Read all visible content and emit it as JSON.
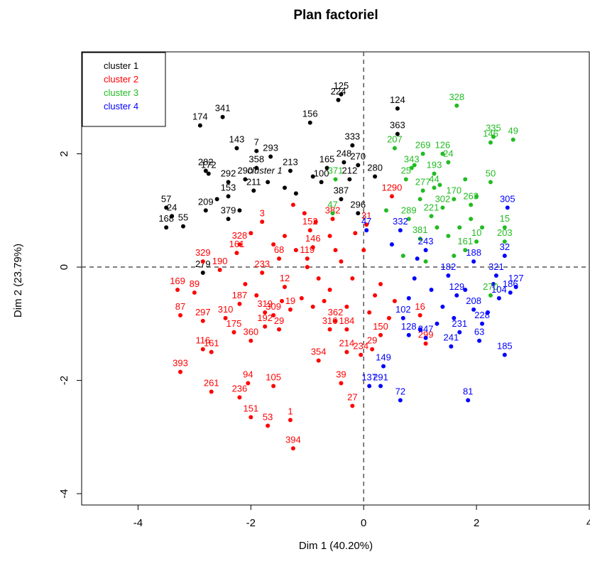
{
  "chart_data": {
    "type": "scatter",
    "title": "Plan factoriel",
    "xlabel": "Dim 1 (40.20%)",
    "ylabel": "Dim 2 (23.79%)",
    "xlim": [
      -5,
      4
    ],
    "ylim": [
      -4.2,
      3.8
    ],
    "xticks": [
      -4,
      -2,
      0,
      2,
      4
    ],
    "yticks": [
      -4,
      -2,
      0,
      2
    ],
    "reference_lines": {
      "x": 0,
      "y": 0,
      "style": "dashed"
    },
    "legend": {
      "position": "top-left",
      "entries": [
        {
          "label": "cluster 1",
          "color": "#000000"
        },
        {
          "label": "cluster 2",
          "color": "#ff0000"
        },
        {
          "label": "cluster 3",
          "color": "#22bb22"
        },
        {
          "label": "cluster 4",
          "color": "#0000ff"
        }
      ]
    },
    "series": [
      {
        "name": "cluster 1",
        "color": "#000000",
        "points": [
          {
            "label": "125",
            "x": -0.4,
            "y": 3.05
          },
          {
            "label": "224",
            "x": -0.45,
            "y": 2.95
          },
          {
            "label": "341",
            "x": -2.5,
            "y": 2.65
          },
          {
            "label": "174",
            "x": -2.9,
            "y": 2.5
          },
          {
            "label": "156",
            "x": -0.95,
            "y": 2.55
          },
          {
            "label": "124",
            "x": 0.6,
            "y": 2.8
          },
          {
            "label": "363",
            "x": 0.6,
            "y": 2.35
          },
          {
            "label": "143",
            "x": -2.25,
            "y": 2.1
          },
          {
            "label": "7",
            "x": -1.9,
            "y": 2.05
          },
          {
            "label": "293",
            "x": -1.65,
            "y": 1.95
          },
          {
            "label": "282",
            "x": -2.8,
            "y": 1.7
          },
          {
            "label": "172",
            "x": -2.75,
            "y": 1.65
          },
          {
            "label": "358",
            "x": -1.9,
            "y": 1.75
          },
          {
            "label": "213",
            "x": -1.3,
            "y": 1.7
          },
          {
            "label": "333",
            "x": -0.2,
            "y": 2.15
          },
          {
            "label": "248",
            "x": -0.35,
            "y": 1.85
          },
          {
            "label": "270",
            "x": -0.1,
            "y": 1.8
          },
          {
            "label": "165",
            "x": -0.65,
            "y": 1.75
          },
          {
            "label": "100",
            "x": -0.75,
            "y": 1.5
          },
          {
            "label": "212",
            "x": -0.25,
            "y": 1.55
          },
          {
            "label": "280",
            "x": 0.2,
            "y": 1.6
          },
          {
            "label": "292",
            "x": -2.4,
            "y": 1.5
          },
          {
            "label": "290",
            "x": -2.1,
            "y": 1.55
          },
          {
            "label": "211",
            "x": -1.95,
            "y": 1.35
          },
          {
            "label": "153",
            "x": -2.4,
            "y": 1.25
          },
          {
            "label": "209",
            "x": -2.8,
            "y": 1.0
          },
          {
            "label": "57",
            "x": -3.5,
            "y": 1.05
          },
          {
            "label": "24",
            "x": -3.4,
            "y": 0.9
          },
          {
            "label": "168",
            "x": -3.5,
            "y": 0.7
          },
          {
            "label": "55",
            "x": -3.2,
            "y": 0.72
          },
          {
            "label": "379",
            "x": -2.4,
            "y": 0.85
          },
          {
            "label": "296",
            "x": -0.1,
            "y": 0.95
          },
          {
            "label": "387",
            "x": -0.4,
            "y": 1.2
          },
          {
            "label": "279",
            "x": -2.85,
            "y": -0.1
          }
        ]
      },
      {
        "name": "cluster 2",
        "color": "#ff0000",
        "points": [
          {
            "label": "329",
            "x": -2.85,
            "y": 0.1
          },
          {
            "label": "190",
            "x": -2.55,
            "y": -0.05
          },
          {
            "label": "169",
            "x": -3.3,
            "y": -0.4
          },
          {
            "label": "89",
            "x": -3.0,
            "y": -0.45
          },
          {
            "label": "87",
            "x": -3.25,
            "y": -0.85
          },
          {
            "label": "297",
            "x": -2.85,
            "y": -0.95
          },
          {
            "label": "310",
            "x": -2.45,
            "y": -0.9
          },
          {
            "label": "187",
            "x": -2.2,
            "y": -0.65
          },
          {
            "label": "319",
            "x": -1.75,
            "y": -0.8
          },
          {
            "label": "175",
            "x": -2.3,
            "y": -1.15
          },
          {
            "label": "360",
            "x": -2.0,
            "y": -1.3
          },
          {
            "label": "116",
            "x": -2.85,
            "y": -1.45
          },
          {
            "label": "161",
            "x": -2.7,
            "y": -1.5
          },
          {
            "label": "393",
            "x": -3.25,
            "y": -1.85
          },
          {
            "label": "261",
            "x": -2.7,
            "y": -2.2
          },
          {
            "label": "236",
            "x": -2.2,
            "y": -2.3
          },
          {
            "label": "94",
            "x": -2.05,
            "y": -2.05
          },
          {
            "label": "105",
            "x": -1.6,
            "y": -2.1
          },
          {
            "label": "151",
            "x": -2.0,
            "y": -2.65
          },
          {
            "label": "53",
            "x": -1.7,
            "y": -2.8
          },
          {
            "label": "1",
            "x": -1.3,
            "y": -2.7
          },
          {
            "label": "394",
            "x": -1.25,
            "y": -3.2
          },
          {
            "label": "354",
            "x": -0.8,
            "y": -1.65
          },
          {
            "label": "214",
            "x": -0.3,
            "y": -1.5
          },
          {
            "label": "234",
            "x": -0.05,
            "y": -1.55
          },
          {
            "label": "39",
            "x": -0.4,
            "y": -2.05
          },
          {
            "label": "27",
            "x": -0.2,
            "y": -2.45
          },
          {
            "label": "29",
            "x": 0.15,
            "y": -1.45
          },
          {
            "label": "16",
            "x": 1.0,
            "y": -0.85
          },
          {
            "label": "299",
            "x": 1.1,
            "y": -1.35
          },
          {
            "label": "309",
            "x": -1.6,
            "y": -0.85
          },
          {
            "label": "29",
            "x": -1.5,
            "y": -1.1
          },
          {
            "label": "192",
            "x": -1.75,
            "y": -1.05
          },
          {
            "label": "316",
            "x": -0.6,
            "y": -1.1
          },
          {
            "label": "184",
            "x": -0.3,
            "y": -1.1
          },
          {
            "label": "146",
            "x": -0.9,
            "y": 0.35
          },
          {
            "label": "152",
            "x": -0.95,
            "y": 0.65
          },
          {
            "label": "328",
            "x": -2.2,
            "y": 0.4
          },
          {
            "label": "161",
            "x": -2.25,
            "y": 0.25
          },
          {
            "label": "233",
            "x": -1.8,
            "y": -0.1
          },
          {
            "label": "1290",
            "x": 0.5,
            "y": 1.25
          },
          {
            "label": "3",
            "x": -1.8,
            "y": 0.8
          },
          {
            "label": "382",
            "x": -0.55,
            "y": 0.85
          },
          {
            "label": "31",
            "x": 0.05,
            "y": 0.75
          },
          {
            "label": "12",
            "x": -1.4,
            "y": -0.35
          },
          {
            "label": "19",
            "x": -1.3,
            "y": -0.75
          },
          {
            "label": "362",
            "x": -0.5,
            "y": -0.95
          },
          {
            "label": "150",
            "x": 0.3,
            "y": -1.2
          },
          {
            "label": "119",
            "x": -1.0,
            "y": 0.15
          },
          {
            "label": "68",
            "x": -1.5,
            "y": 0.15
          }
        ]
      },
      {
        "name": "cluster 3",
        "color": "#22bb22",
        "points": [
          {
            "label": "328",
            "x": 1.65,
            "y": 2.85
          },
          {
            "label": "335",
            "x": 2.3,
            "y": 2.3
          },
          {
            "label": "146",
            "x": 2.25,
            "y": 2.2
          },
          {
            "label": "49",
            "x": 2.65,
            "y": 2.25
          },
          {
            "label": "207",
            "x": 0.55,
            "y": 2.1
          },
          {
            "label": "269",
            "x": 1.05,
            "y": 2.0
          },
          {
            "label": "126",
            "x": 1.4,
            "y": 2.0
          },
          {
            "label": "24",
            "x": 1.5,
            "y": 1.85
          },
          {
            "label": "343",
            "x": 0.85,
            "y": 1.75
          },
          {
            "label": "193",
            "x": 1.25,
            "y": 1.65
          },
          {
            "label": "25",
            "x": 0.75,
            "y": 1.55
          },
          {
            "label": "44",
            "x": 1.25,
            "y": 1.4
          },
          {
            "label": "50",
            "x": 2.25,
            "y": 1.5
          },
          {
            "label": "170",
            "x": 1.6,
            "y": 1.2
          },
          {
            "label": "263",
            "x": 1.9,
            "y": 1.1
          },
          {
            "label": "47",
            "x": -0.55,
            "y": 0.95
          },
          {
            "label": "15",
            "x": 2.5,
            "y": 0.7
          },
          {
            "label": "10",
            "x": 2.0,
            "y": 0.45
          },
          {
            "label": "203",
            "x": 2.5,
            "y": 0.45
          },
          {
            "label": "161",
            "x": 1.8,
            "y": 0.3
          },
          {
            "label": "289",
            "x": 0.8,
            "y": 0.85
          },
          {
            "label": "371",
            "x": -0.5,
            "y": 1.55
          },
          {
            "label": "270",
            "x": 2.25,
            "y": -0.5
          },
          {
            "label": "221",
            "x": 1.2,
            "y": 0.9
          },
          {
            "label": "381",
            "x": 1.0,
            "y": 0.5
          },
          {
            "label": "302",
            "x": 1.4,
            "y": 1.05
          },
          {
            "label": "277",
            "x": 1.05,
            "y": 1.35
          }
        ]
      },
      {
        "name": "cluster 4",
        "color": "#0000ff",
        "points": [
          {
            "label": "305",
            "x": 2.55,
            "y": 1.05
          },
          {
            "label": "32",
            "x": 2.5,
            "y": 0.2
          },
          {
            "label": "321",
            "x": 2.35,
            "y": -0.15
          },
          {
            "label": "127",
            "x": 2.7,
            "y": -0.35
          },
          {
            "label": "186",
            "x": 2.6,
            "y": -0.45
          },
          {
            "label": "104",
            "x": 2.4,
            "y": -0.55
          },
          {
            "label": "185",
            "x": 2.5,
            "y": -1.55
          },
          {
            "label": "81",
            "x": 1.85,
            "y": -2.35
          },
          {
            "label": "72",
            "x": 0.65,
            "y": -2.35
          },
          {
            "label": "137",
            "x": 0.1,
            "y": -2.1
          },
          {
            "label": "291",
            "x": 0.3,
            "y": -2.1
          },
          {
            "label": "149",
            "x": 0.35,
            "y": -1.75
          },
          {
            "label": "102",
            "x": 0.7,
            "y": -0.9
          },
          {
            "label": "128",
            "x": 0.8,
            "y": -1.2
          },
          {
            "label": "347",
            "x": 1.1,
            "y": -1.25
          },
          {
            "label": "241",
            "x": 1.55,
            "y": -1.4
          },
          {
            "label": "63",
            "x": 2.05,
            "y": -1.3
          },
          {
            "label": "228",
            "x": 2.1,
            "y": -1.0
          },
          {
            "label": "208",
            "x": 1.95,
            "y": -0.75
          },
          {
            "label": "188",
            "x": 1.95,
            "y": 0.1
          },
          {
            "label": "182",
            "x": 1.5,
            "y": -0.15
          },
          {
            "label": "129",
            "x": 1.65,
            "y": -0.5
          },
          {
            "label": "231",
            "x": 1.7,
            "y": -1.15
          },
          {
            "label": "47",
            "x": 0.05,
            "y": 0.65
          },
          {
            "label": "332",
            "x": 0.65,
            "y": 0.65
          },
          {
            "label": "243",
            "x": 1.1,
            "y": 0.3
          }
        ]
      }
    ],
    "unlabeled_points": [
      {
        "color": "#ff0000",
        "x": -1.2,
        "y": 0.3
      },
      {
        "color": "#ff0000",
        "x": -1.0,
        "y": 0.0
      },
      {
        "color": "#ff0000",
        "x": -0.8,
        "y": -0.2
      },
      {
        "color": "#ff0000",
        "x": -0.6,
        "y": -0.4
      },
      {
        "color": "#ff0000",
        "x": -0.4,
        "y": 0.1
      },
      {
        "color": "#ff0000",
        "x": -0.2,
        "y": -0.2
      },
      {
        "color": "#ff0000",
        "x": 0.0,
        "y": 0.3
      },
      {
        "color": "#ff0000",
        "x": 0.2,
        "y": -0.5
      },
      {
        "color": "#ff0000",
        "x": -1.4,
        "y": 0.55
      },
      {
        "color": "#ff0000",
        "x": -1.6,
        "y": 0.4
      },
      {
        "color": "#ff0000",
        "x": -1.1,
        "y": -0.55
      },
      {
        "color": "#ff0000",
        "x": -0.9,
        "y": -0.7
      },
      {
        "color": "#ff0000",
        "x": -0.7,
        "y": -0.6
      },
      {
        "color": "#ff0000",
        "x": -0.3,
        "y": -0.7
      },
      {
        "color": "#ff0000",
        "x": 0.1,
        "y": -0.8
      },
      {
        "color": "#ff0000",
        "x": 0.3,
        "y": -0.3
      },
      {
        "color": "#ff0000",
        "x": -1.25,
        "y": 1.1
      },
      {
        "color": "#ff0000",
        "x": -1.05,
        "y": 0.95
      },
      {
        "color": "#ff0000",
        "x": -0.85,
        "y": 0.8
      },
      {
        "color": "#ff0000",
        "x": -0.6,
        "y": 0.55
      },
      {
        "color": "#ff0000",
        "x": -2.0,
        "y": 0.6
      },
      {
        "color": "#ff0000",
        "x": -2.1,
        "y": -0.3
      },
      {
        "color": "#ff0000",
        "x": -1.9,
        "y": -0.5
      },
      {
        "color": "#ff0000",
        "x": -1.45,
        "y": -0.6
      },
      {
        "color": "#ff0000",
        "x": 0.45,
        "y": -0.9
      },
      {
        "color": "#ff0000",
        "x": 0.55,
        "y": -0.6
      },
      {
        "color": "#ff0000",
        "x": -0.15,
        "y": 0.6
      },
      {
        "color": "#ff0000",
        "x": -0.5,
        "y": 0.3
      },
      {
        "color": "#22bb22",
        "x": 1.0,
        "y": 1.2
      },
      {
        "color": "#22bb22",
        "x": 1.3,
        "y": 0.7
      },
      {
        "color": "#22bb22",
        "x": 1.5,
        "y": 0.55
      },
      {
        "color": "#22bb22",
        "x": 1.7,
        "y": 0.7
      },
      {
        "color": "#22bb22",
        "x": 1.9,
        "y": 0.85
      },
      {
        "color": "#22bb22",
        "x": 2.1,
        "y": 0.7
      },
      {
        "color": "#22bb22",
        "x": 1.35,
        "y": 1.45
      },
      {
        "color": "#22bb22",
        "x": 1.8,
        "y": 1.55
      },
      {
        "color": "#22bb22",
        "x": 0.7,
        "y": 0.2
      },
      {
        "color": "#22bb22",
        "x": 1.1,
        "y": 0.1
      },
      {
        "color": "#22bb22",
        "x": 1.6,
        "y": 0.2
      },
      {
        "color": "#22bb22",
        "x": 2.0,
        "y": 1.25
      },
      {
        "color": "#22bb22",
        "x": 0.4,
        "y": 1.0
      },
      {
        "color": "#22bb22",
        "x": 0.9,
        "y": 1.8
      },
      {
        "color": "#0000ff",
        "x": 0.9,
        "y": -0.2
      },
      {
        "color": "#0000ff",
        "x": 1.2,
        "y": -0.4
      },
      {
        "color": "#0000ff",
        "x": 1.4,
        "y": -0.7
      },
      {
        "color": "#0000ff",
        "x": 1.6,
        "y": -0.9
      },
      {
        "color": "#0000ff",
        "x": 1.8,
        "y": -0.4
      },
      {
        "color": "#0000ff",
        "x": 2.2,
        "y": -0.8
      },
      {
        "color": "#0000ff",
        "x": 1.3,
        "y": -1.0
      },
      {
        "color": "#0000ff",
        "x": 0.8,
        "y": -0.55
      },
      {
        "color": "#0000ff",
        "x": 0.5,
        "y": 0.4
      },
      {
        "color": "#0000ff",
        "x": 0.95,
        "y": 0.15
      },
      {
        "color": "#0000ff",
        "x": 2.3,
        "y": -0.3
      },
      {
        "color": "#0000ff",
        "x": 1.0,
        "y": -1.1
      },
      {
        "color": "#000000",
        "x": -1.7,
        "y": 1.5
      },
      {
        "color": "#000000",
        "x": -1.4,
        "y": 1.4
      },
      {
        "color": "#000000",
        "x": -1.2,
        "y": 1.3
      },
      {
        "color": "#000000",
        "x": -0.9,
        "y": 1.6
      },
      {
        "color": "#000000",
        "x": -2.6,
        "y": 1.2
      },
      {
        "color": "#000000",
        "x": -2.2,
        "y": 1.0
      }
    ],
    "annotation": {
      "label": "cluster 1",
      "x": -1.75,
      "y": 1.65
    }
  }
}
